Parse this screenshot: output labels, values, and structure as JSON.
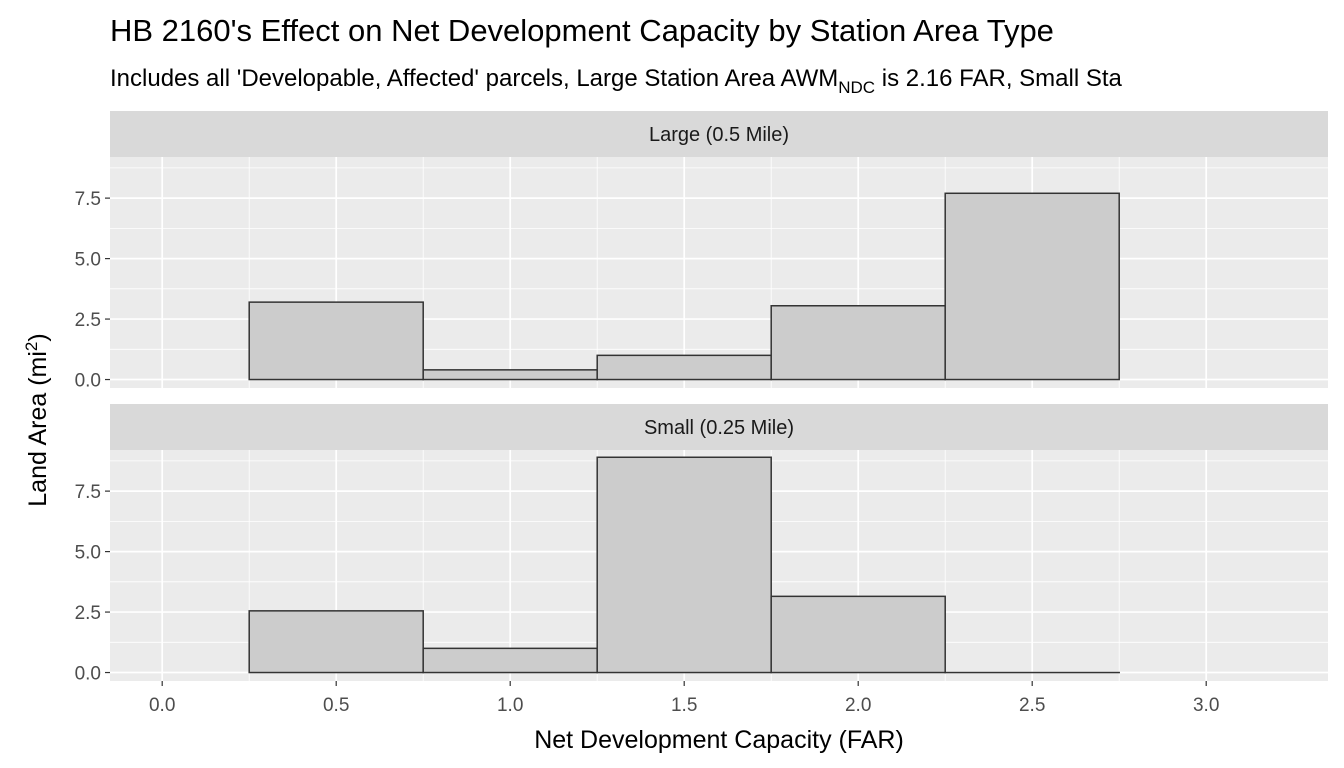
{
  "colors": {
    "panel_bg": "#ebebeb",
    "strip_bg": "#d9d9d9",
    "grid": "#ffffff",
    "bar_fill": "#cccccc",
    "bar_stroke": "#333333",
    "tick_text": "#4d4d4d"
  },
  "chart_data": {
    "type": "histogram",
    "title": "HB 2160's Effect on Net Development Capacity by Station Area Type",
    "subtitle": {
      "before": "Includes all 'Developable, Affected' parcels, Large Station Area AWM",
      "sub": "NDC",
      "after": " is 2.16 FAR, Small Sta"
    },
    "xlabel": "Net Development Capacity (FAR)",
    "ylabel": {
      "base": "Land Area (mi",
      "sup": "2",
      "close": ")"
    },
    "xlim": [
      -0.15,
      3.35
    ],
    "ylim": [
      -0.35,
      9.2
    ],
    "x_ticks": [
      0.0,
      0.5,
      1.0,
      1.5,
      2.0,
      2.5,
      3.0
    ],
    "x_tick_labels": [
      "0.0",
      "0.5",
      "1.0",
      "1.5",
      "2.0",
      "2.5",
      "3.0"
    ],
    "y_ticks": [
      0.0,
      2.5,
      5.0,
      7.5
    ],
    "y_tick_labels": [
      "0.0",
      "2.5",
      "5.0",
      "7.5"
    ],
    "bin_edges": [
      0.25,
      0.75,
      1.25,
      1.75,
      2.25,
      2.75
    ],
    "panels": [
      {
        "name": "large",
        "strip": "Large (0.5 Mile)",
        "values": [
          3.2,
          0.4,
          1.0,
          3.05,
          7.7
        ]
      },
      {
        "name": "small",
        "strip": "Small (0.25 Mile)",
        "values": [
          2.55,
          1.0,
          8.9,
          3.15,
          0.0
        ]
      }
    ]
  }
}
